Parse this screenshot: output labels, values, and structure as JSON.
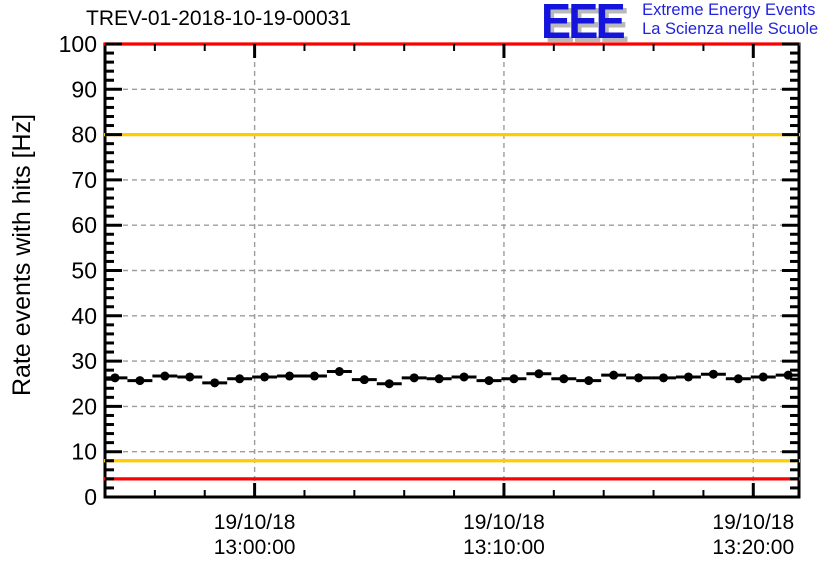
{
  "header": {
    "title": "TREV-01-2018-10-19-00031",
    "logo": {
      "acronym": "EEE",
      "line1": "Extreme Energy Events",
      "line2": "La Scienza nelle Scuole",
      "text_color": "#2222dd",
      "shadow_color": "#b9b9b9"
    }
  },
  "chart_data": {
    "type": "scatter",
    "title": "TREV-01-2018-10-19-00031",
    "xlabel": "",
    "ylabel": "Rate events with hits [Hz]",
    "ylim": [
      0,
      100
    ],
    "y_major_tick_step": 10,
    "y_minor_tick_step": 2,
    "x_range": [
      "12:54:00",
      "13:21:50"
    ],
    "x_minor_tick_seconds": 120,
    "x_major_ticks": [
      {
        "date": "19/10/18",
        "time": "13:00:00"
      },
      {
        "date": "19/10/18",
        "time": "13:10:00"
      },
      {
        "date": "19/10/18",
        "time": "13:20:00"
      }
    ],
    "grid": {
      "show": true,
      "style": "dashed",
      "color": "#9c9c9c"
    },
    "legend": "none",
    "thresholds": [
      {
        "name": "alarm-high",
        "value": 100,
        "color": "#ff0000"
      },
      {
        "name": "warning-high",
        "value": 80,
        "color": "#ffcc00"
      },
      {
        "name": "warning-low",
        "value": 8,
        "color": "#ffcc00"
      },
      {
        "name": "alarm-low",
        "value": 4,
        "color": "#ff0000"
      }
    ],
    "series": [
      {
        "name": "rate-events-with-hits",
        "marker": "filled-circle",
        "color": "#000000",
        "x_error_seconds": 30,
        "points": [
          {
            "time": "12:54:24",
            "value": 26.3
          },
          {
            "time": "12:55:24",
            "value": 25.7
          },
          {
            "time": "12:56:24",
            "value": 26.7
          },
          {
            "time": "12:57:24",
            "value": 26.5
          },
          {
            "time": "12:58:24",
            "value": 25.2
          },
          {
            "time": "12:59:24",
            "value": 26.1
          },
          {
            "time": "13:00:24",
            "value": 26.5
          },
          {
            "time": "13:01:24",
            "value": 26.7
          },
          {
            "time": "13:02:24",
            "value": 26.7
          },
          {
            "time": "13:03:24",
            "value": 27.7
          },
          {
            "time": "13:04:24",
            "value": 25.9
          },
          {
            "time": "13:05:24",
            "value": 25.0
          },
          {
            "time": "13:06:24",
            "value": 26.3
          },
          {
            "time": "13:07:24",
            "value": 26.1
          },
          {
            "time": "13:08:24",
            "value": 26.5
          },
          {
            "time": "13:09:24",
            "value": 25.7
          },
          {
            "time": "13:10:24",
            "value": 26.1
          },
          {
            "time": "13:11:24",
            "value": 27.2
          },
          {
            "time": "13:12:24",
            "value": 26.1
          },
          {
            "time": "13:13:24",
            "value": 25.7
          },
          {
            "time": "13:14:24",
            "value": 26.9
          },
          {
            "time": "13:15:24",
            "value": 26.3
          },
          {
            "time": "13:16:24",
            "value": 26.3
          },
          {
            "time": "13:17:24",
            "value": 26.5
          },
          {
            "time": "13:18:24",
            "value": 27.1
          },
          {
            "time": "13:19:24",
            "value": 26.1
          },
          {
            "time": "13:20:24",
            "value": 26.5
          },
          {
            "time": "13:21:24",
            "value": 26.9
          }
        ]
      }
    ]
  }
}
